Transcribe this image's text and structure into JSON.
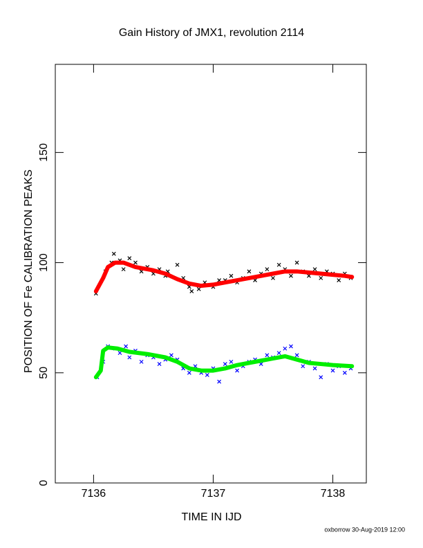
{
  "chart_data": {
    "type": "scatter",
    "title": "Gain History of JMX1, revolution 2114",
    "x_label": "TIME IN IJD",
    "y_label": "POSITION OF Fe CALIBRATION PEAKS",
    "footer": "oxborrow 30-Aug-2019 12:00",
    "xlim": [
      7135.68,
      7138.28
    ],
    "xticks": [
      7136,
      7137,
      7138
    ],
    "ylim": [
      0,
      190
    ],
    "yticks": [
      0,
      50,
      100,
      150
    ],
    "series": [
      {
        "style": "cross",
        "color": "#000000",
        "x": [
          7136.02,
          7136.1,
          7136.15,
          7136.17,
          7136.22,
          7136.25,
          7136.3,
          7136.35,
          7136.4,
          7136.45,
          7136.5,
          7136.55,
          7136.6,
          7136.62,
          7136.7,
          7136.75,
          7136.8,
          7136.82,
          7136.88,
          7136.93,
          7137.0,
          7137.05,
          7137.1,
          7137.15,
          7137.2,
          7137.25,
          7137.3,
          7137.35,
          7137.4,
          7137.45,
          7137.5,
          7137.55,
          7137.6,
          7137.65,
          7137.7,
          7137.75,
          7137.8,
          7137.85,
          7137.9,
          7137.95,
          7138.0,
          7138.05,
          7138.1,
          7138.15
        ],
        "values": [
          86,
          96,
          100,
          104,
          101,
          97,
          102,
          100,
          96,
          98,
          95,
          97,
          94,
          96,
          99,
          93,
          89,
          87,
          88,
          91,
          89,
          92,
          92,
          94,
          91,
          93,
          96,
          92,
          95,
          97,
          93,
          99,
          97,
          94,
          100,
          96,
          94,
          97,
          93,
          96,
          95,
          92,
          95,
          93
        ]
      },
      {
        "style": "cross",
        "color": "#0000ff",
        "x": [
          7136.03,
          7136.08,
          7136.12,
          7136.18,
          7136.22,
          7136.27,
          7136.3,
          7136.35,
          7136.4,
          7136.45,
          7136.5,
          7136.55,
          7136.6,
          7136.65,
          7136.7,
          7136.75,
          7136.8,
          7136.85,
          7136.9,
          7136.95,
          7137.0,
          7137.05,
          7137.1,
          7137.15,
          7137.2,
          7137.25,
          7137.3,
          7137.35,
          7137.4,
          7137.45,
          7137.5,
          7137.55,
          7137.6,
          7137.65,
          7137.7,
          7137.75,
          7137.8,
          7137.85,
          7137.9,
          7137.95,
          7138.0,
          7138.05,
          7138.1,
          7138.15
        ],
        "values": [
          48,
          55,
          62,
          61,
          59,
          62,
          57,
          60,
          55,
          58,
          57,
          54,
          56,
          58,
          56,
          52,
          50,
          53,
          50,
          49,
          52,
          46,
          54,
          55,
          51,
          53,
          55,
          56,
          54,
          58,
          57,
          59,
          61,
          62,
          58,
          53,
          55,
          52,
          48,
          54,
          51,
          53,
          50,
          52
        ]
      },
      {
        "style": "line",
        "color": "#ff0000",
        "x": [
          7136.02,
          7136.08,
          7136.12,
          7136.18,
          7136.25,
          7136.35,
          7136.5,
          7136.6,
          7136.7,
          7136.8,
          7136.9,
          7137.0,
          7137.1,
          7137.2,
          7137.35,
          7137.5,
          7137.6,
          7137.7,
          7137.8,
          7137.9,
          7138.0,
          7138.1,
          7138.16
        ],
        "values": [
          87,
          93,
          98,
          100,
          100,
          98,
          96.5,
          95,
          92.5,
          90.5,
          89.5,
          90,
          91,
          92,
          93.5,
          95,
          96,
          96,
          95.5,
          95,
          94.5,
          94,
          93.5
        ]
      },
      {
        "style": "line",
        "color": "#00ee00",
        "x": [
          7136.02,
          7136.06,
          7136.08,
          7136.12,
          7136.2,
          7136.3,
          7136.45,
          7136.6,
          7136.7,
          7136.8,
          7136.9,
          7137.0,
          7137.1,
          7137.2,
          7137.35,
          7137.5,
          7137.6,
          7137.7,
          7137.8,
          7137.9,
          7138.0,
          7138.16
        ],
        "values": [
          48,
          51,
          60,
          61.5,
          61,
          59.5,
          58.5,
          57,
          55,
          52,
          51,
          51,
          52,
          53.5,
          55,
          56.5,
          57.5,
          56,
          54.5,
          54,
          53.5,
          53
        ]
      }
    ]
  }
}
